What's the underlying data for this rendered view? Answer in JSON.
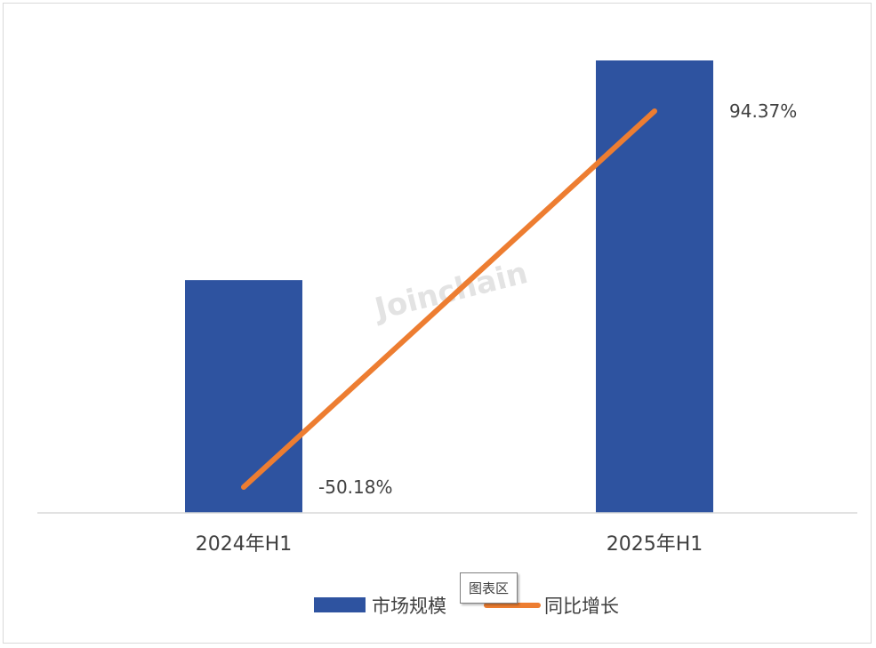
{
  "chart_data": {
    "type": "bar",
    "categories": [
      "2024年H1",
      "2025年H1"
    ],
    "series": [
      {
        "name": "市场规模",
        "kind": "bar",
        "color": "#2E53A0",
        "values": [
          1.0,
          1.9437
        ]
      },
      {
        "name": "同比增长",
        "kind": "line",
        "color": "#ED7D31",
        "values": [
          -50.18,
          94.37
        ],
        "labels": [
          "-50.18%",
          "94.37%"
        ]
      }
    ],
    "title": "",
    "xlabel": "",
    "ylabel": "",
    "y_axis_visible": false,
    "grid": false,
    "legend_position": "bottom",
    "watermark": "Joinchain",
    "tooltip": "图表区"
  }
}
